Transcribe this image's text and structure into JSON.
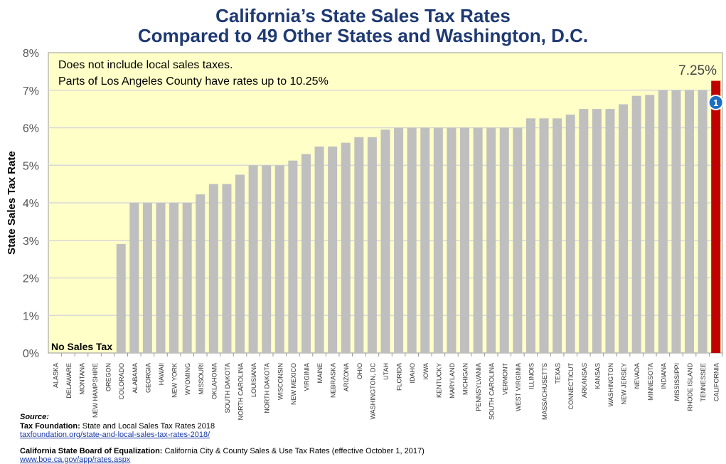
{
  "title_line1": "California’s State Sales Tax Rates",
  "title_line2": "Compared to 49 Other States and Washington, D.C.",
  "chart_data": {
    "type": "bar",
    "ylabel": "State Sales Tax Rate",
    "ylim": [
      0,
      8
    ],
    "yticks": [
      "0%",
      "1%",
      "2%",
      "3%",
      "4%",
      "5%",
      "6%",
      "7%",
      "8%"
    ],
    "grid": true,
    "categories": [
      "ALASKA",
      "DELAWARE",
      "MONTANA",
      "NEW HAMPSHIRE",
      "OREGON",
      "COLORADO",
      "ALABAMA",
      "GEORGIA",
      "HAWAII",
      "NEW YORK",
      "WYOMING",
      "MISSOURI",
      "OKLAHOMA",
      "SOUTH DAKOTA",
      "NORTH CAROLINA",
      "LOUISIANA",
      "NORTH DAKOTA",
      "WISCONSIN",
      "NEW MEXICO",
      "VIRGINIA",
      "MAINE",
      "NEBRASKA",
      "ARIZONA",
      "OHIO",
      "WASHINGTON, DC",
      "UTAH",
      "FLORIDA",
      "IDAHO",
      "IOWA",
      "KENTUCKY",
      "MARYLAND",
      "MICHIGAN",
      "PENNSYLVANIA",
      "SOUTH CAROLINA",
      "VERMONT",
      "WEST VIRGINIA",
      "ILLINOIS",
      "MASSACHUSETTS",
      "TEXAS",
      "CONNECTICUT",
      "ARKANSAS",
      "KANSAS",
      "WASHINGTON",
      "NEW JERSEY",
      "NEVADA",
      "MINNESOTA",
      "INDIANA",
      "MISSISSIPPI",
      "RHODE ISLAND",
      "TENNESSEE",
      "CALIFORNIA"
    ],
    "values": [
      0,
      0,
      0,
      0,
      0,
      2.9,
      4,
      4,
      4,
      4,
      4,
      4.225,
      4.5,
      4.5,
      4.75,
      5,
      5,
      5,
      5.125,
      5.3,
      5.5,
      5.5,
      5.6,
      5.75,
      5.75,
      5.95,
      6,
      6,
      6,
      6,
      6,
      6,
      6,
      6,
      6,
      6,
      6.25,
      6.25,
      6.25,
      6.35,
      6.5,
      6.5,
      6.5,
      6.625,
      6.85,
      6.875,
      7,
      7,
      7,
      7,
      7.25
    ],
    "highlight": "CALIFORNIA",
    "bar_color": "#bfbfbf",
    "highlight_color": "#c00000",
    "plot_bg": "#ffffc8",
    "note_line1": "Does not include local sales taxes.",
    "note_line2": "Parts of Los Angeles County have rates up to 10.25%",
    "highlight_label": "7.25%",
    "rank_badge": "1",
    "badge_color": "#1c6fc4",
    "zero_label": "No Sales Tax"
  },
  "source": {
    "heading": "Source:",
    "s1_org": "Tax Foundation:",
    "s1_text": " State and Local Sales Tax Rates 2018",
    "s1_link": "taxfoundation.org/state-and-local-sales-tax-rates-2018/",
    "s2_org": "California State Board of Equalization:",
    "s2_text": " California City & County Sales & Use Tax Rates (effective October 1, 2017)",
    "s2_link": "www.boe.ca.gov/app/rates.aspx"
  }
}
